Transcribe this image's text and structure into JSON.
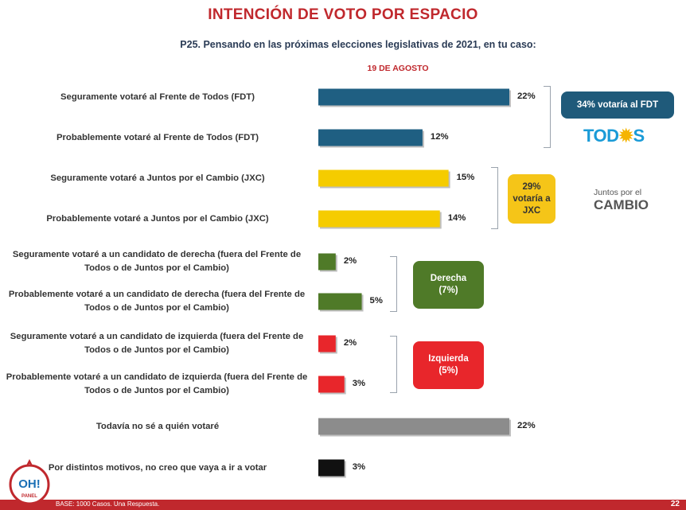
{
  "title": "INTENCIÓN DE VOTO POR ESPACIO",
  "subtitle": "P25. Pensando en las próximas elecciones legislativas de 2021, en tu caso:",
  "date": "19 DE AGOSTO",
  "chart_data": {
    "type": "bar",
    "orientation": "horizontal",
    "categories": [
      "Seguramente votaré al Frente de Todos (FDT)",
      "Probablemente votaré al Frente de Todos (FDT)",
      "Seguramente votaré a Juntos por el Cambio (JXC)",
      "Probablemente votaré a Juntos por el Cambio (JXC)",
      "Seguramente votaré a un candidato de derecha (fuera del Frente de Todos o de Juntos por el Cambio)",
      "Probablemente votaré a un candidato de derecha (fuera del Frente de Todos o de Juntos por el Cambio)",
      "Seguramente votaré a un candidato de izquierda (fuera del Frente de Todos o de Juntos por el Cambio)",
      "Probablemente votaré a un candidato de izquierda (fuera del Frente de Todos o de Juntos por el Cambio)",
      "Todavía no sé a quién votaré",
      "Por distintos motivos, no creo que vaya a ir a votar"
    ],
    "values": [
      22,
      12,
      15,
      14,
      2,
      5,
      2,
      3,
      22,
      3
    ],
    "value_labels": [
      "22%",
      "12%",
      "15%",
      "14%",
      "2%",
      "5%",
      "2%",
      "3%",
      "22%",
      "3%"
    ],
    "colors": [
      "#1f5f82",
      "#1f5f82",
      "#f5cc00",
      "#f5cc00",
      "#4f7a28",
      "#4f7a28",
      "#e8262b",
      "#e8262b",
      "#8c8c8c",
      "#111111"
    ],
    "xlim": [
      0,
      22
    ],
    "grid": false
  },
  "groups": [
    {
      "label": "34% votaría al FDT",
      "color": "#1f5a7a"
    },
    {
      "label": "29%\nvotaría a\nJXC",
      "color": "#f5c518"
    },
    {
      "label": "Derecha\n(7%)",
      "color": "#4f7a28"
    },
    {
      "label": "Izquierda\n(5%)",
      "color": "#e8262b"
    }
  ],
  "logos": {
    "todos_a": "TOD",
    "todos_sun": "✹",
    "todos_b": "S",
    "jxc_small": "Juntos por el",
    "jxc_big": "CAMBIO",
    "oh_panel": "OH!",
    "oh_panel_sub": "PANEL"
  },
  "footer": {
    "base": "BASE: 1000 Casos. Una Respuesta.",
    "page": "22"
  }
}
